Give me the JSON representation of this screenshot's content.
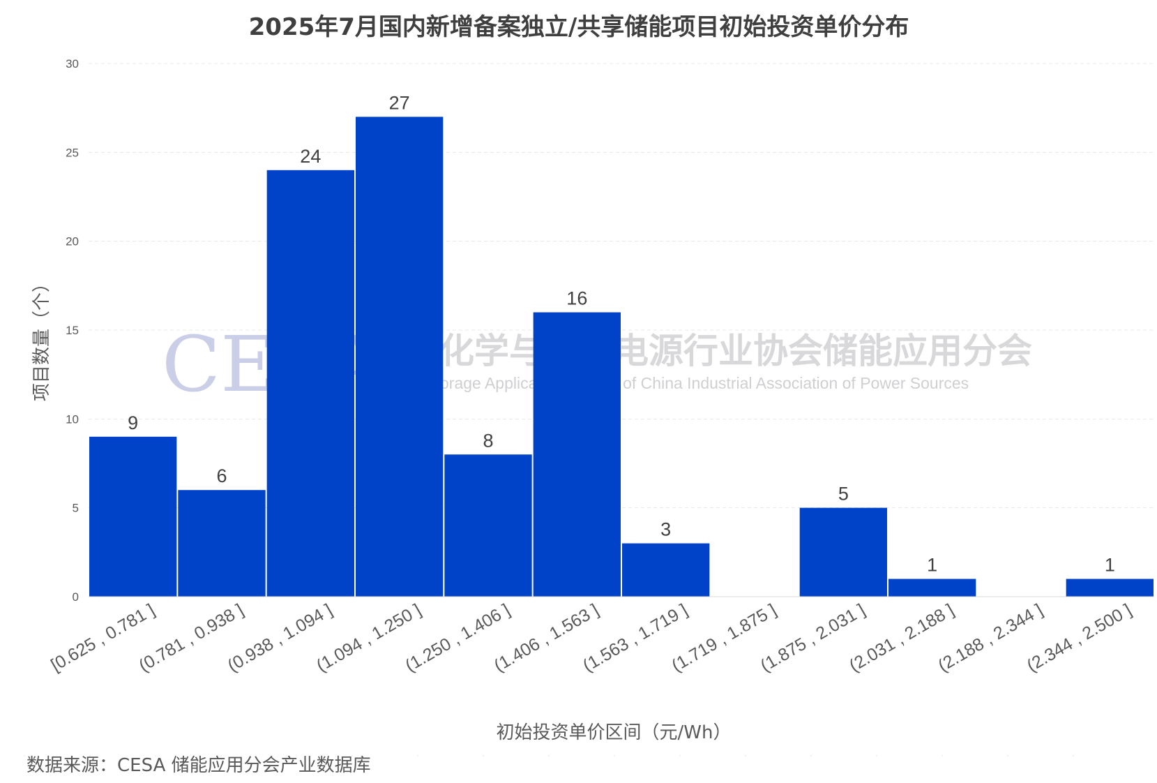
{
  "chart_data": {
    "type": "bar",
    "title": "2025年7月国内新增备案独立/共享储能项目初始投资单价分布",
    "xlabel": "初始投资单价区间（元/Wh）",
    "ylabel": "项目数量（个）",
    "ylim": [
      0,
      30
    ],
    "yticks": [
      0,
      5,
      10,
      15,
      20,
      25,
      30
    ],
    "grid": true,
    "categories": [
      "[0.625 , 0.781 ]",
      "(0.781 , 0.938 ]",
      "(0.938 , 1.094 ]",
      "(1.094 , 1.250 ]",
      "(1.250 , 1.406 ]",
      "(1.406 , 1.563 ]",
      "(1.563 , 1.719 ]",
      "(1.719 , 1.875 ]",
      "(1.875 , 2.031 ]",
      "(2.031 , 2.188 ]",
      "(2.188 , 2.344 ]",
      "(2.344 , 2.500 ]"
    ],
    "values": [
      9,
      6,
      24,
      27,
      8,
      16,
      3,
      0,
      5,
      1,
      0,
      1
    ],
    "data_labels": [
      "9",
      "6",
      "24",
      "27",
      "8",
      "16",
      "3",
      "",
      "5",
      "1",
      "",
      "1"
    ],
    "bar_color": "#0043c9"
  },
  "watermark": {
    "logo": "CESA",
    "name_cn": "中国化学与物理电源行业协会储能应用分会",
    "name_en": "Energy Storage Application Branch of China Industrial Association of Power Sources"
  },
  "source": "数据来源：CESA 储能应用分会产业数据库"
}
